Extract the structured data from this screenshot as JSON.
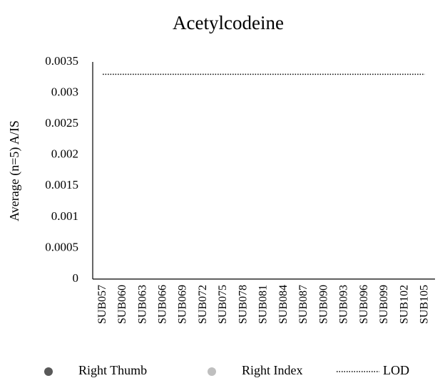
{
  "chart_data": {
    "type": "line",
    "title": "Acetylcodeine",
    "y_label": "Average (n=5) A/IS",
    "categories": [
      "SUB057",
      "SUB060",
      "SUB063",
      "SUB066",
      "SUB069",
      "SUB072",
      "SUB075",
      "SUB078",
      "SUB081",
      "SUB084",
      "SUB087",
      "SUB090",
      "SUB093",
      "SUB096",
      "SUB099",
      "SUB102",
      "SUB105"
    ],
    "series": [
      {
        "name": "Right Thumb",
        "color": "#595959",
        "marker": "circle",
        "values": [
          null,
          null,
          null,
          null,
          null,
          null,
          null,
          null,
          null,
          null,
          null,
          null,
          null,
          null,
          null,
          null,
          null
        ]
      },
      {
        "name": "Right Index",
        "color": "#bfbfbf",
        "marker": "circle",
        "values": [
          null,
          null,
          null,
          null,
          null,
          null,
          null,
          null,
          null,
          null,
          null,
          null,
          null,
          null,
          null,
          null,
          null
        ]
      },
      {
        "name": "LOD",
        "color": "#000000",
        "marker": "dotted-line",
        "values": [
          0.0033,
          0.0033,
          0.0033,
          0.0033,
          0.0033,
          0.0033,
          0.0033,
          0.0033,
          0.0033,
          0.0033,
          0.0033,
          0.0033,
          0.0033,
          0.0033,
          0.0033,
          0.0033,
          0.0033
        ]
      }
    ],
    "ylim": [
      0,
      0.0035
    ],
    "yticks": [
      0,
      0.0005,
      0.001,
      0.0015,
      0.002,
      0.0025,
      0.003,
      0.0035
    ],
    "grid": false,
    "legend": "bottom"
  }
}
